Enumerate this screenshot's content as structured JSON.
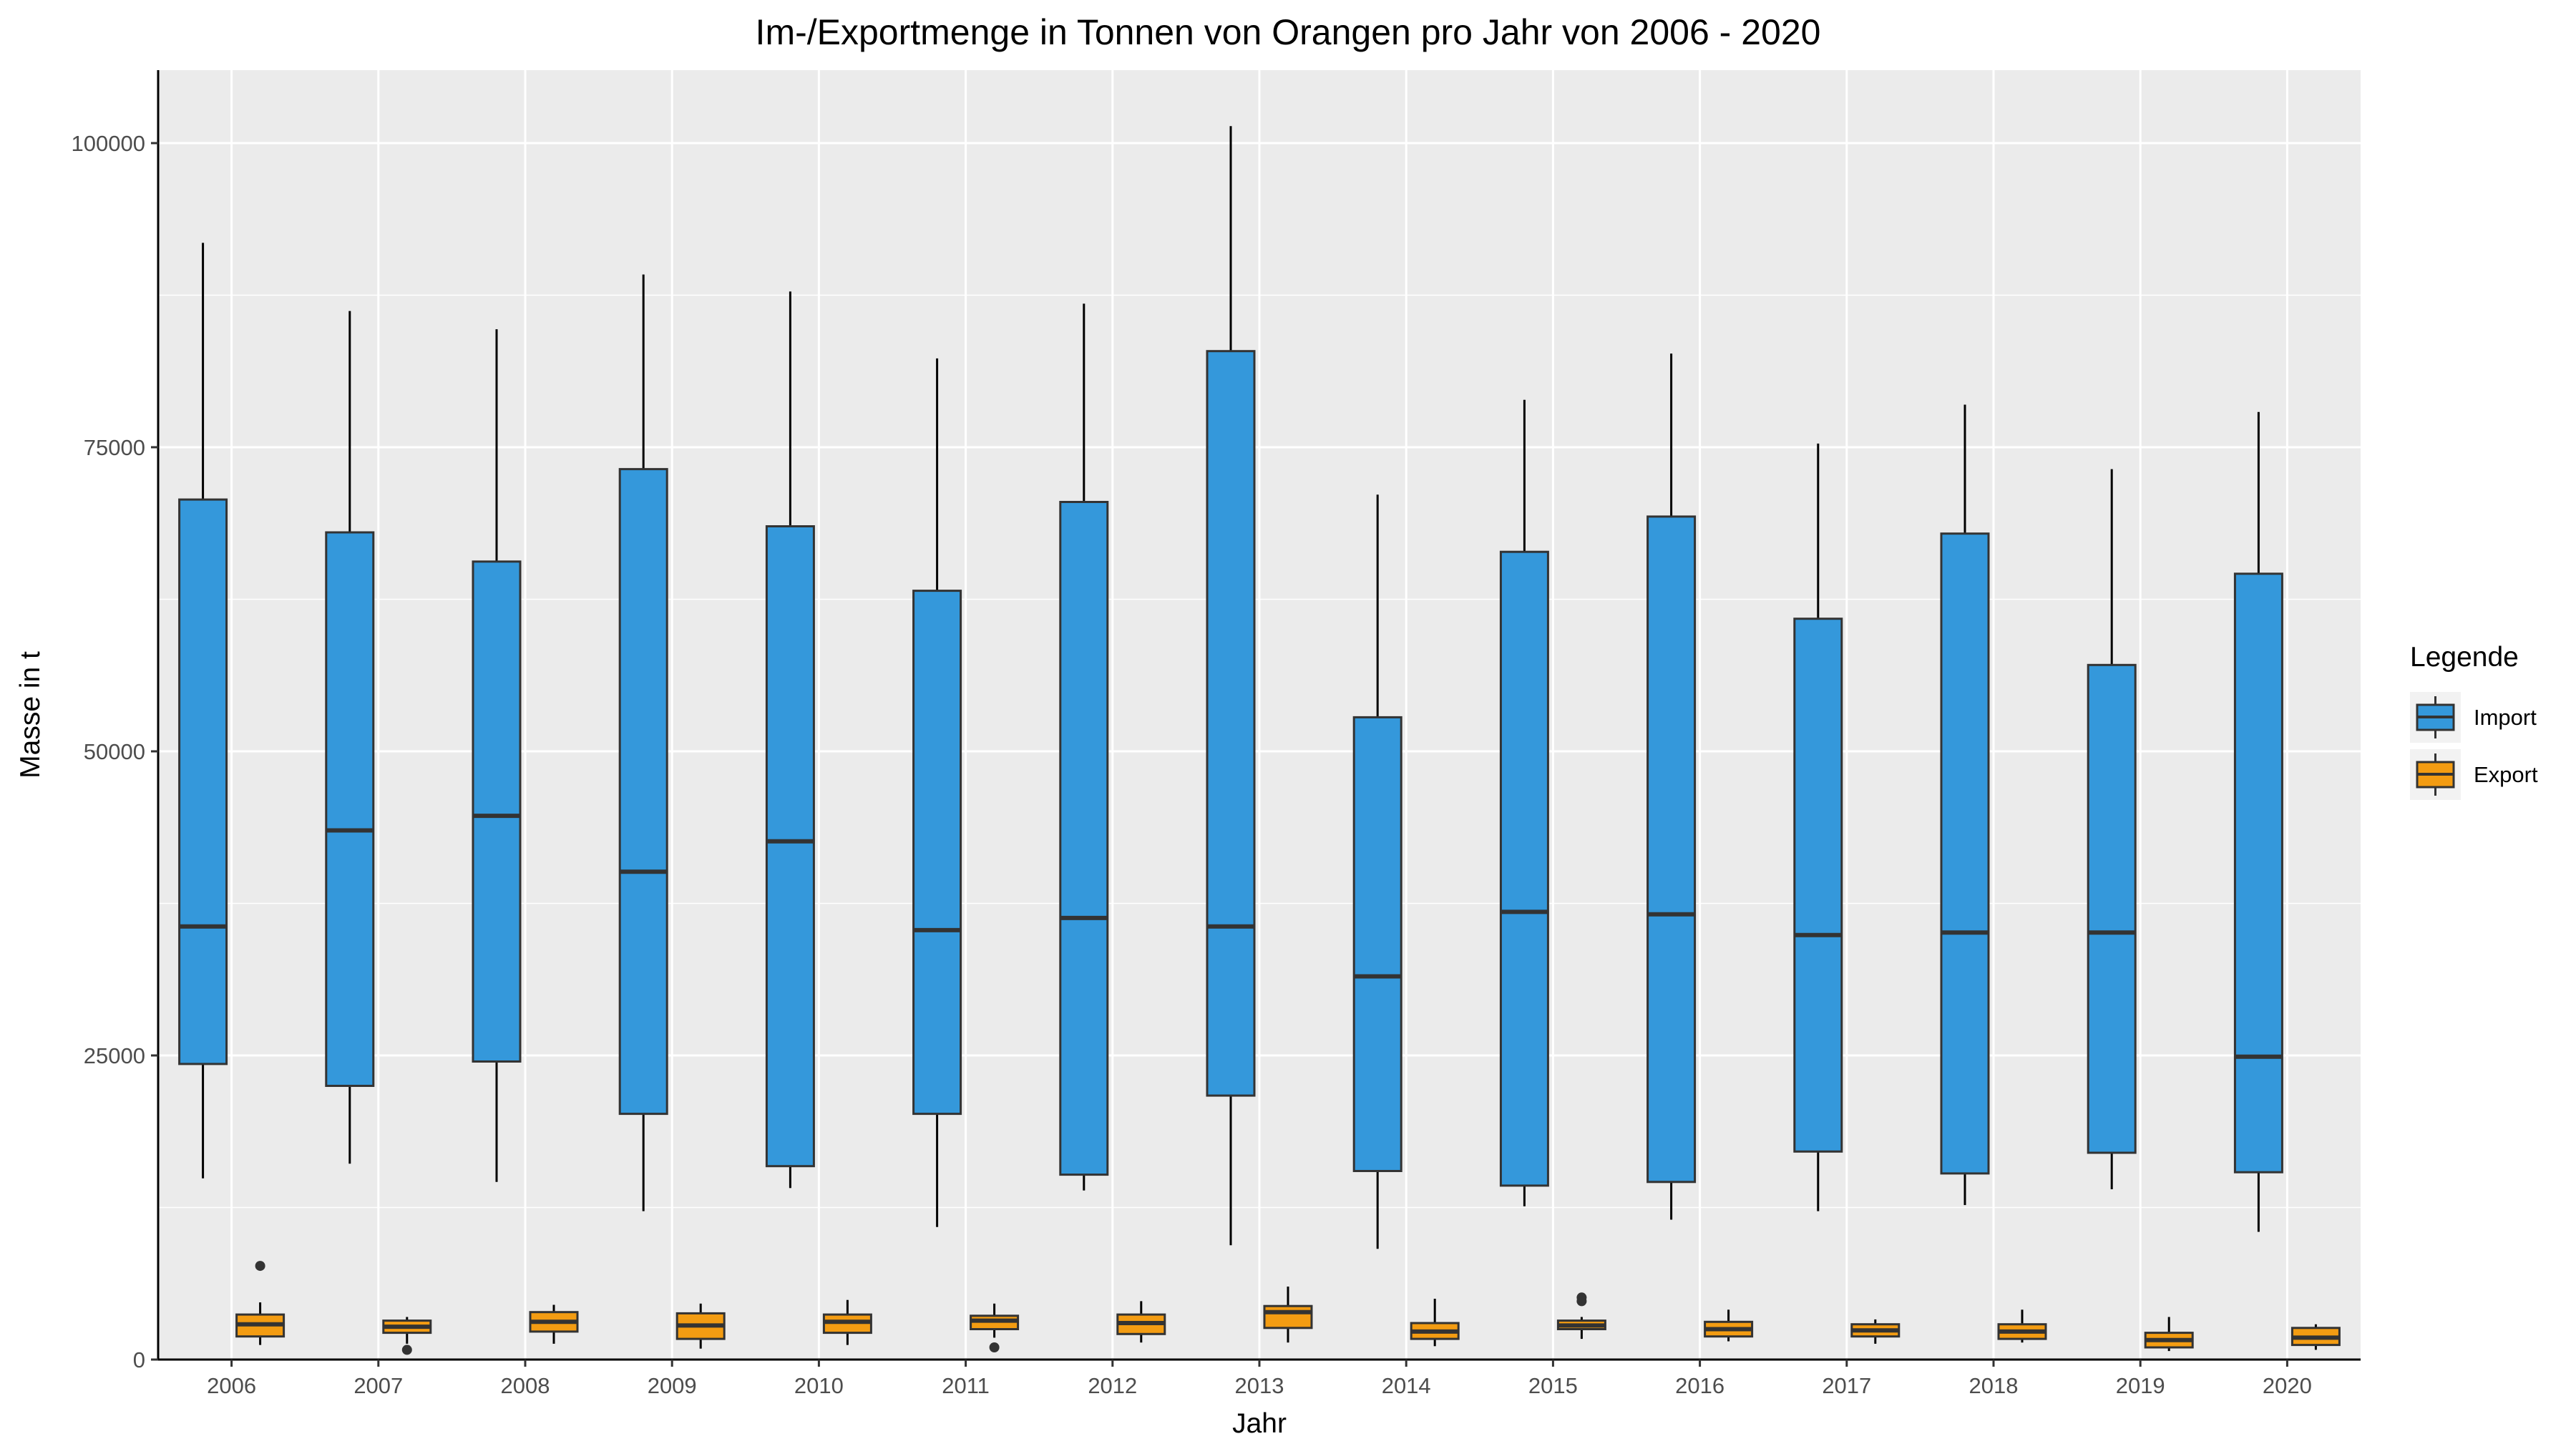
{
  "chart_data": {
    "type": "boxplot",
    "title": "Im-/Exportmenge in Tonnen von Orangen pro Jahr von 2006 - 2020",
    "xlabel": "Jahr",
    "ylabel": "Masse in t",
    "categories": [
      "2006",
      "2007",
      "2008",
      "2009",
      "2010",
      "2011",
      "2012",
      "2013",
      "2014",
      "2015",
      "2016",
      "2017",
      "2018",
      "2019",
      "2020"
    ],
    "y_ticks": [
      0,
      25000,
      50000,
      75000,
      100000
    ],
    "y_tick_labels": [
      "0",
      "25000",
      "50000",
      "75000",
      "100000"
    ],
    "ylim": [
      0,
      106000
    ],
    "grid": true,
    "legend": {
      "title": "Legende",
      "position": "right"
    },
    "series": [
      {
        "name": "Import",
        "color": "#3498db",
        "boxes": [
          {
            "min": 14900,
            "q1": 24300,
            "median": 35600,
            "q3": 70700,
            "max": 91800,
            "outliers": []
          },
          {
            "min": 16100,
            "q1": 22500,
            "median": 43500,
            "q3": 68000,
            "max": 86200,
            "outliers": []
          },
          {
            "min": 14600,
            "q1": 24500,
            "median": 44700,
            "q3": 65600,
            "max": 84700,
            "outliers": []
          },
          {
            "min": 12200,
            "q1": 20200,
            "median": 40100,
            "q3": 73200,
            "max": 89200,
            "outliers": []
          },
          {
            "min": 14100,
            "q1": 15900,
            "median": 42600,
            "q3": 68500,
            "max": 87800,
            "outliers": []
          },
          {
            "min": 10900,
            "q1": 20200,
            "median": 35300,
            "q3": 63200,
            "max": 82300,
            "outliers": []
          },
          {
            "min": 13900,
            "q1": 15200,
            "median": 36300,
            "q3": 70500,
            "max": 86800,
            "outliers": []
          },
          {
            "min": 9400,
            "q1": 21700,
            "median": 35600,
            "q3": 82900,
            "max": 101400,
            "outliers": []
          },
          {
            "min": 9100,
            "q1": 15500,
            "median": 31500,
            "q3": 52800,
            "max": 71100,
            "outliers": []
          },
          {
            "min": 12600,
            "q1": 14300,
            "median": 36800,
            "q3": 66400,
            "max": 78900,
            "outliers": []
          },
          {
            "min": 11500,
            "q1": 14600,
            "median": 36600,
            "q3": 69300,
            "max": 82700,
            "outliers": []
          },
          {
            "min": 12200,
            "q1": 17100,
            "median": 34900,
            "q3": 60900,
            "max": 75300,
            "outliers": []
          },
          {
            "min": 12700,
            "q1": 15300,
            "median": 35100,
            "q3": 67900,
            "max": 78500,
            "outliers": []
          },
          {
            "min": 14000,
            "q1": 17000,
            "median": 35100,
            "q3": 57100,
            "max": 73200,
            "outliers": []
          },
          {
            "min": 10500,
            "q1": 15400,
            "median": 24900,
            "q3": 64600,
            "max": 77900,
            "outliers": []
          }
        ]
      },
      {
        "name": "Export",
        "color": "#f39c12",
        "boxes": [
          {
            "min": 1200,
            "q1": 1900,
            "median": 2900,
            "q3": 3700,
            "max": 4700,
            "outliers": [
              7700
            ]
          },
          {
            "min": 1300,
            "q1": 2200,
            "median": 2700,
            "q3": 3200,
            "max": 3500,
            "outliers": [
              800
            ]
          },
          {
            "min": 1300,
            "q1": 2300,
            "median": 3100,
            "q3": 3900,
            "max": 4500,
            "outliers": []
          },
          {
            "min": 900,
            "q1": 1700,
            "median": 2800,
            "q3": 3800,
            "max": 4600,
            "outliers": []
          },
          {
            "min": 1200,
            "q1": 2200,
            "median": 3100,
            "q3": 3700,
            "max": 4900,
            "outliers": []
          },
          {
            "min": 1800,
            "q1": 2500,
            "median": 3200,
            "q3": 3600,
            "max": 4600,
            "outliers": [
              1000
            ]
          },
          {
            "min": 1400,
            "q1": 2100,
            "median": 3000,
            "q3": 3700,
            "max": 4800,
            "outliers": []
          },
          {
            "min": 1400,
            "q1": 2600,
            "median": 3900,
            "q3": 4400,
            "max": 6000,
            "outliers": []
          },
          {
            "min": 1100,
            "q1": 1700,
            "median": 2300,
            "q3": 3000,
            "max": 5000,
            "outliers": []
          },
          {
            "min": 1700,
            "q1": 2500,
            "median": 2800,
            "q3": 3200,
            "max": 3500,
            "outliers": [
              4800,
              5100
            ]
          },
          {
            "min": 1500,
            "q1": 1900,
            "median": 2500,
            "q3": 3100,
            "max": 4100,
            "outliers": []
          },
          {
            "min": 1300,
            "q1": 1900,
            "median": 2400,
            "q3": 2900,
            "max": 3300,
            "outliers": []
          },
          {
            "min": 1400,
            "q1": 1700,
            "median": 2300,
            "q3": 2900,
            "max": 4100,
            "outliers": []
          },
          {
            "min": 700,
            "q1": 1000,
            "median": 1600,
            "q3": 2200,
            "max": 3500,
            "outliers": []
          },
          {
            "min": 800,
            "q1": 1200,
            "median": 1800,
            "q3": 2600,
            "max": 2900,
            "outliers": []
          }
        ]
      }
    ]
  }
}
